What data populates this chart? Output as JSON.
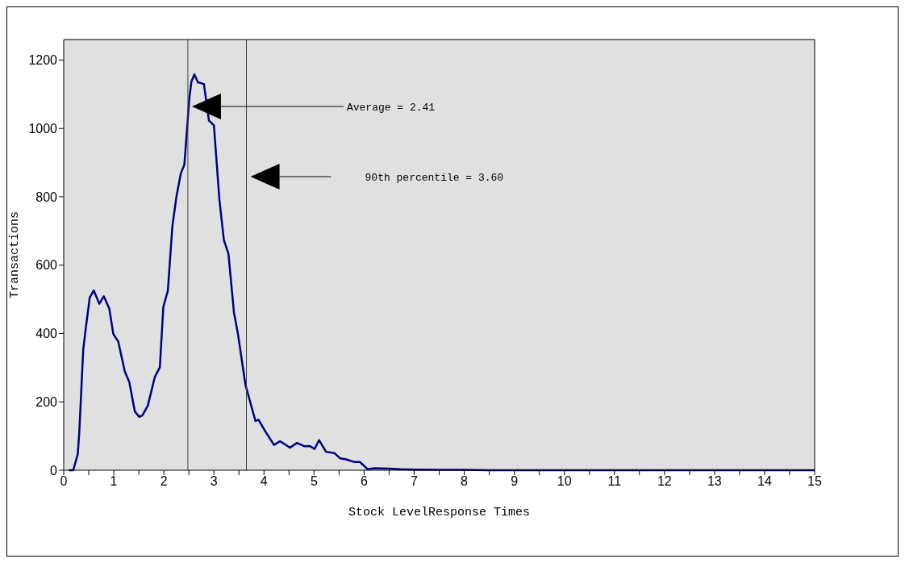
{
  "chart_data": {
    "type": "line",
    "xlabel": "Stock LevelResponse Times",
    "ylabel": "Transactions",
    "x": [
      0.1,
      0.19,
      0.28,
      0.31,
      0.39,
      0.44,
      0.52,
      0.6,
      0.71,
      0.8,
      0.91,
      0.99,
      1.09,
      1.22,
      1.31,
      1.42,
      1.51,
      1.57,
      1.68,
      1.82,
      1.92,
      1.99,
      2.08,
      2.17,
      2.25,
      2.34,
      2.41,
      2.51,
      2.55,
      2.61,
      2.68,
      2.8,
      2.9,
      3.0,
      3.11,
      3.2,
      3.29,
      3.4,
      3.48,
      3.63,
      3.83,
      3.89,
      4.03,
      4.2,
      4.32,
      4.52,
      4.66,
      4.81,
      4.92,
      5.01,
      5.1,
      5.24,
      5.41,
      5.52,
      5.64,
      5.81,
      5.92,
      6.07,
      6.21,
      6.5,
      6.73,
      7.01,
      7.59,
      8.0,
      8.5,
      9,
      15
    ],
    "series": [
      {
        "color": "#000080",
        "values": [
          0,
          0,
          47,
          109,
          353,
          415,
          505,
          526,
          487,
          509,
          473,
          399,
          376,
          289,
          258,
          172,
          156,
          160,
          189,
          273,
          301,
          478,
          525,
          713,
          799,
          869,
          894,
          1090,
          1136,
          1158,
          1135,
          1130,
          1023,
          1009,
          791,
          673,
          634,
          462,
          399,
          250,
          144,
          148,
          113,
          74,
          85,
          66,
          80,
          70,
          71,
          62,
          88,
          54,
          50,
          35,
          32,
          24,
          24,
          3,
          6,
          5,
          3,
          2,
          1,
          1,
          0,
          0,
          0
        ]
      }
    ],
    "xlim": [
      0,
      15
    ],
    "xticks": [
      0,
      {
        "value": 0.5,
        "label": null
      },
      1,
      {
        "value": 1.5,
        "label": null
      },
      2,
      {
        "value": 2.5,
        "label": null
      },
      3,
      {
        "value": 3.5,
        "label": null
      },
      4,
      {
        "value": 4.5,
        "label": null
      },
      5,
      {
        "value": 5.5,
        "label": null
      },
      6,
      {
        "value": 6.5,
        "label": null
      },
      7,
      {
        "value": 7.5,
        "label": null
      },
      8,
      {
        "value": 8.5,
        "label": null
      },
      9,
      {
        "value": 9.5,
        "label": null
      },
      10,
      {
        "value": 10.5,
        "label": null
      },
      11,
      {
        "value": 11.5,
        "label": null
      },
      12,
      {
        "value": 12.5,
        "label": null
      },
      13,
      {
        "value": 13.5,
        "label": null
      },
      14,
      {
        "value": 14.5,
        "label": null
      },
      15
    ],
    "ylim": [
      0,
      1260
    ],
    "yticks": [
      0,
      200,
      400,
      600,
      800,
      1000,
      1200
    ],
    "ref_lines": [
      {
        "axis": "x",
        "value": 2.48,
        "color": "#404040"
      },
      {
        "axis": "x",
        "value": 3.65,
        "color": "#404040"
      }
    ],
    "annotations": [
      "Average =  2.41",
      "90th percentile =  3.60"
    ],
    "grid": false,
    "legend": false,
    "marker": "none",
    "line_style": "solid"
  }
}
